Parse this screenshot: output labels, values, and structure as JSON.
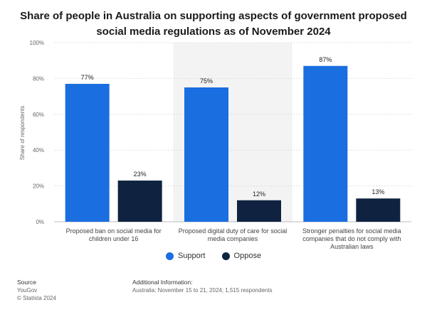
{
  "title": "Share of people in Australia on supporting aspects of government proposed social media regulations as of November 2024",
  "legend": {
    "support": "Support",
    "oppose": "Oppose"
  },
  "colors": {
    "support": "#1a6ee0",
    "oppose": "#0f2341"
  },
  "footer": {
    "source_heading": "Source",
    "source_name": "YouGov",
    "copyright": "© Statista 2024",
    "info_heading": "Additional Information:",
    "info_text": "Australia; November 15 to 21, 2024; 1,515 respondents"
  },
  "chart_data": {
    "type": "bar",
    "categories": [
      [
        "Proposed ban on social media for",
        "children under 16"
      ],
      [
        "Proposed digital duty of care for social",
        "media companies"
      ],
      [
        "Stronger penalties for social media",
        "companies that do not comply with",
        "Australian laws"
      ]
    ],
    "series": [
      {
        "name": "Support",
        "values": [
          77,
          75,
          87
        ]
      },
      {
        "name": "Oppose",
        "values": [
          23,
          12,
          13
        ]
      }
    ],
    "ylabel": "Share of respondents",
    "ylim": [
      0,
      100
    ],
    "yticks": [
      "0%",
      "20%",
      "40%",
      "60%",
      "80%",
      "100%"
    ],
    "value_suffix": "%",
    "grid": true
  }
}
